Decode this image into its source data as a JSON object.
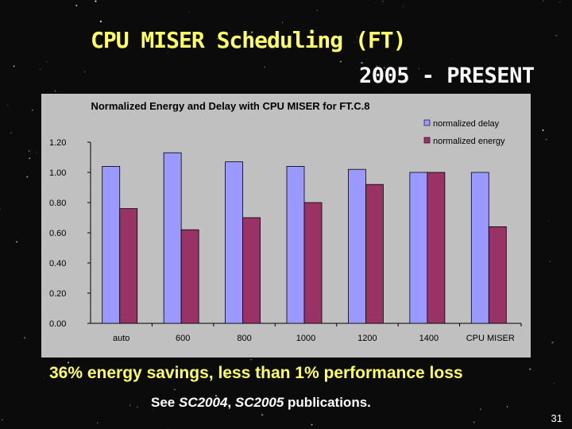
{
  "slide": {
    "title": "CPU MISER Scheduling (FT)",
    "subtitle": "2005 - PRESENT",
    "headline": "36% energy savings, less than 1% performance loss",
    "pubs_prefix": "See ",
    "pubs_ref1": "SC2004",
    "pubs_sep": ", ",
    "pubs_ref2": "SC2005",
    "pubs_suffix": " publications.",
    "page_number": "31"
  },
  "colors": {
    "title": "#ffff66",
    "headline": "#ffff66",
    "chart_bg": "#c0c0c0",
    "delay": "#9999ff",
    "energy": "#993366"
  },
  "chart_data": {
    "type": "bar",
    "title": "Normalized Energy and Delay with CPU MISER for FT.C.8",
    "categories": [
      "auto",
      "600",
      "800",
      "1000",
      "1200",
      "1400",
      "CPU MISER"
    ],
    "series": [
      {
        "name": "normalized delay",
        "values": [
          1.04,
          1.13,
          1.07,
          1.04,
          1.02,
          1.0,
          1.0
        ]
      },
      {
        "name": "normalized energy",
        "values": [
          0.76,
          0.62,
          0.7,
          0.8,
          0.92,
          1.0,
          0.64
        ]
      }
    ],
    "y_ticks": [
      "0.00",
      "0.20",
      "0.40",
      "0.60",
      "0.80",
      "1.00",
      "1.20"
    ],
    "ylim": [
      0,
      1.2
    ],
    "xlabel": "",
    "ylabel": "",
    "legend": "top-right",
    "grid": false
  }
}
